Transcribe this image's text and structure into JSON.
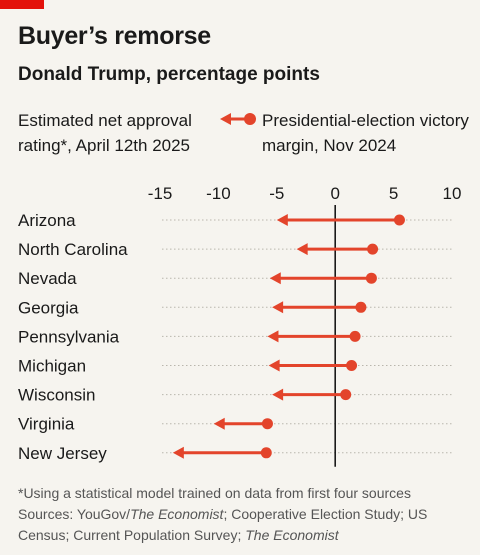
{
  "header": {
    "title": "Buyer’s remorse",
    "subtitle": "Donald Trump, percentage points"
  },
  "legend": {
    "approval": "Estimated net approval rating*, April 12th 2025",
    "margin": "Presidential-election victory margin, Nov 2024"
  },
  "footnote": {
    "note": "*Using a statistical model trained on data from first four sources",
    "sources_prefix": "Sources: YouGov/",
    "source_1": "The Economist",
    "sources_mid": "; Cooperative Election Study; US Census; Current Population Survey; ",
    "source_2": "The Economist"
  },
  "colors": {
    "accent": "#e3120b",
    "arrow": "#e3442b",
    "zero_line": "#1a1a1a",
    "background": "#f6f4ef"
  },
  "chart_data": {
    "type": "dot-arrow",
    "title": "Buyer’s remorse",
    "subtitle": "Donald Trump, percentage points",
    "xlim": [
      -15,
      10
    ],
    "xticks": [
      -15,
      -10,
      -5,
      0,
      5,
      10
    ],
    "xtick_labels": [
      "-15",
      "-10",
      "-5",
      "0",
      "5",
      "10"
    ],
    "categories": [
      "Arizona",
      "North Carolina",
      "Nevada",
      "Georgia",
      "Pennsylvania",
      "Michigan",
      "Wisconsin",
      "Virginia",
      "New Jersey"
    ],
    "series": [
      {
        "name": "Presidential-election victory margin, Nov 2024",
        "values": [
          5.5,
          3.2,
          3.1,
          2.2,
          1.7,
          1.4,
          0.9,
          -5.8,
          -5.9
        ]
      },
      {
        "name": "Estimated net approval rating*, April 12th 2025",
        "values": [
          -5.0,
          -3.3,
          -5.6,
          -5.4,
          -5.8,
          -5.7,
          -5.4,
          -10.4,
          -13.9
        ]
      }
    ],
    "legend_position": "top",
    "grid": "horizontal dotted row guides"
  }
}
